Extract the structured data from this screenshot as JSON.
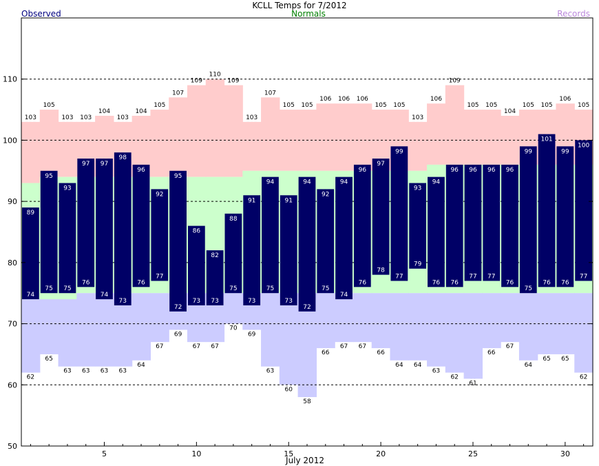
{
  "chart_data": {
    "type": "bar",
    "title": "KCLL Temps for 7/2012",
    "legend": {
      "observed": "Observed",
      "normals": "Normals",
      "records": "Records"
    },
    "xlabel": "July 2012",
    "xlim": [
      1,
      31
    ],
    "ylim": [
      50,
      120
    ],
    "x_ticks": [
      5,
      10,
      15,
      20,
      25,
      30
    ],
    "y_ticks": [
      50,
      60,
      70,
      80,
      90,
      100,
      110
    ],
    "dashed_gridlines": [
      60,
      70,
      80,
      90,
      100,
      110
    ],
    "days": [
      1,
      2,
      3,
      4,
      5,
      6,
      7,
      8,
      9,
      10,
      11,
      12,
      13,
      14,
      15,
      16,
      17,
      18,
      19,
      20,
      21,
      22,
      23,
      24,
      25,
      26,
      27,
      28,
      29,
      30,
      31
    ],
    "observed_high": [
      89,
      95,
      93,
      97,
      97,
      98,
      96,
      92,
      95,
      86,
      82,
      88,
      91,
      94,
      91,
      94,
      92,
      94,
      96,
      97,
      99,
      93,
      94,
      96,
      96,
      96,
      96,
      99,
      101,
      99,
      100
    ],
    "observed_low": [
      74,
      75,
      75,
      76,
      74,
      73,
      76,
      77,
      72,
      73,
      73,
      75,
      73,
      75,
      73,
      72,
      75,
      74,
      76,
      78,
      77,
      79,
      76,
      76,
      77,
      77,
      76,
      75,
      76,
      76,
      77
    ],
    "normal_high": [
      93,
      94,
      94,
      94,
      94,
      94,
      94,
      94,
      94,
      94,
      94,
      94,
      95,
      95,
      95,
      95,
      95,
      95,
      95,
      95,
      95,
      95,
      96,
      96,
      96,
      96,
      96,
      96,
      96,
      96,
      96
    ],
    "normal_low": [
      74,
      74,
      74,
      75,
      75,
      75,
      75,
      75,
      75,
      75,
      75,
      75,
      75,
      75,
      75,
      75,
      75,
      75,
      75,
      75,
      75,
      75,
      75,
      75,
      75,
      75,
      75,
      75,
      75,
      75,
      75
    ],
    "record_high": [
      103,
      105,
      103,
      103,
      104,
      103,
      104,
      105,
      107,
      109,
      110,
      109,
      103,
      107,
      105,
      105,
      106,
      106,
      106,
      105,
      105,
      103,
      106,
      109,
      105,
      105,
      104,
      105,
      105,
      106,
      105
    ],
    "record_low": [
      62,
      65,
      63,
      63,
      63,
      63,
      64,
      67,
      69,
      67,
      67,
      70,
      69,
      63,
      60,
      58,
      66,
      67,
      67,
      66,
      64,
      64,
      63,
      62,
      61,
      66,
      67,
      64,
      65,
      65,
      62
    ],
    "colors": {
      "observed": "#000066",
      "normal_band": "#ccffcc",
      "record_high_band": "#ffcccc",
      "record_low_band": "#ccccff",
      "observed_legend": "#000080",
      "normals_legend": "#008000",
      "records_legend": "#bb88dd"
    }
  }
}
